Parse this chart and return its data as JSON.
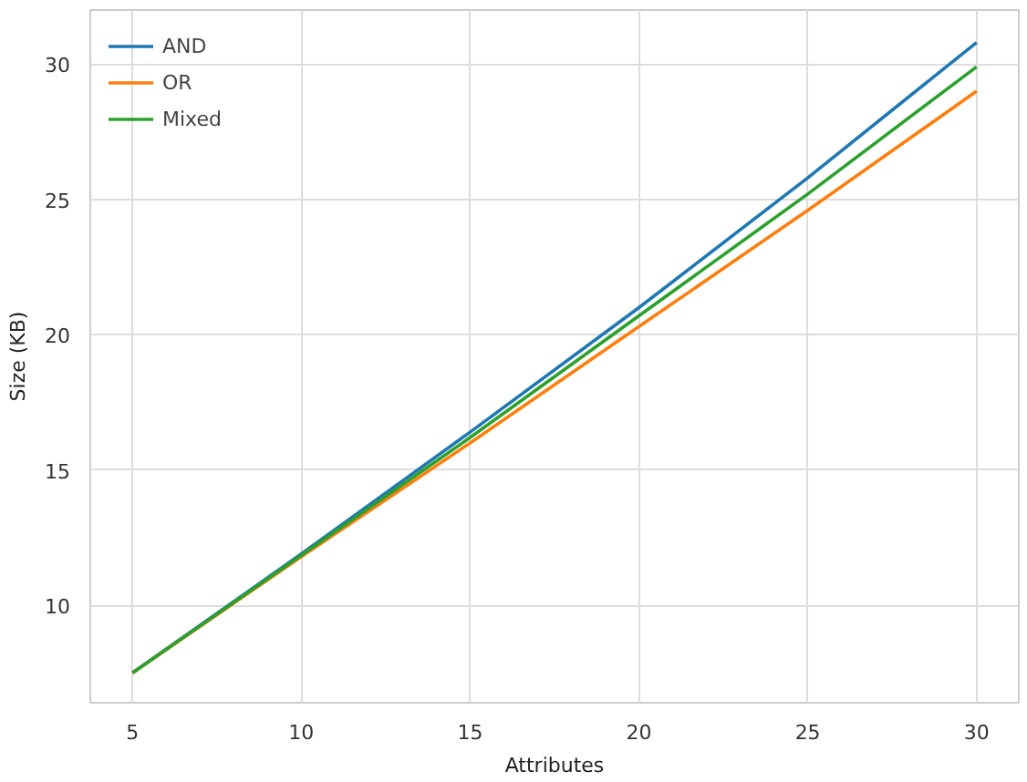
{
  "chart_data": {
    "type": "line",
    "xlabel": "Attributes",
    "ylabel": "Size (KB)",
    "x": [
      5,
      10,
      15,
      20,
      25,
      30
    ],
    "series": [
      {
        "name": "AND",
        "color": "#1f77b4",
        "values": [
          7.5,
          11.9,
          16.4,
          21.0,
          25.8,
          30.8
        ]
      },
      {
        "name": "OR",
        "color": "#ff7f0e",
        "values": [
          7.5,
          11.8,
          16.0,
          20.3,
          24.6,
          29.0
        ]
      },
      {
        "name": "Mixed",
        "color": "#2ca02c",
        "values": [
          7.5,
          11.85,
          16.2,
          20.7,
          25.2,
          29.9
        ]
      }
    ],
    "xlim": [
      3.75,
      31.25
    ],
    "ylim": [
      6.4,
      32.0
    ],
    "xticks": [
      5,
      10,
      15,
      20,
      25,
      30
    ],
    "yticks": [
      10,
      15,
      20,
      25,
      30
    ],
    "grid": true,
    "legend": "top left",
    "marker": "none",
    "line_style": "solid"
  }
}
